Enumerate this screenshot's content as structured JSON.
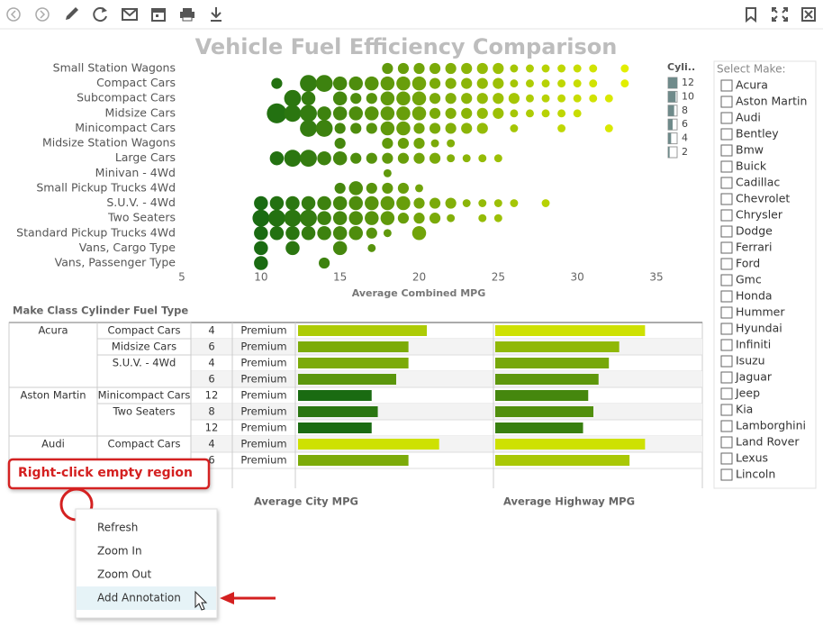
{
  "chart_data": {
    "type": "bubble",
    "title": "Vehicle Fuel Efficiency Comparison",
    "categories": [
      "Small Station Wagons",
      "Compact Cars",
      "Subcompact Cars",
      "Midsize Cars",
      "Minicompact Cars",
      "Midsize Station Wagons",
      "Large Cars",
      "Minivan - 4Wd",
      "Small Pickup Trucks 4Wd",
      "S.U.V. - 4Wd",
      "Two Seaters",
      "Standard Pickup Trucks 4Wd",
      "Vans, Cargo Type",
      "Vans, Passenger Type"
    ],
    "rows": [
      {
        "x": [
          18,
          19,
          20,
          21,
          22,
          23,
          24,
          25,
          26,
          27,
          28,
          29,
          30,
          31,
          33
        ],
        "size": [
          2,
          2,
          2,
          2,
          2,
          2,
          2,
          2,
          1,
          1,
          1,
          1,
          1,
          1,
          1
        ]
      },
      {
        "x": [
          11,
          13,
          14,
          15,
          16,
          17,
          18,
          19,
          20,
          21,
          22,
          23,
          24,
          25,
          26,
          27,
          28,
          29,
          30,
          31,
          33
        ],
        "size": [
          2,
          4,
          4,
          3,
          3,
          3,
          3,
          3,
          3,
          2,
          2,
          2,
          2,
          2,
          1,
          1,
          1,
          1,
          1,
          1,
          1
        ]
      },
      {
        "x": [
          12,
          13,
          15,
          16,
          17,
          18,
          19,
          20,
          21,
          22,
          23,
          24,
          25,
          26,
          27,
          28,
          29,
          30,
          31,
          32
        ],
        "size": [
          4,
          3,
          3,
          2,
          2,
          3,
          3,
          3,
          2,
          2,
          2,
          2,
          2,
          2,
          1,
          1,
          1,
          1,
          1,
          1
        ]
      },
      {
        "x": [
          11,
          12,
          13,
          14,
          15,
          16,
          17,
          18,
          19,
          20,
          21,
          22,
          23,
          24,
          25,
          26,
          27,
          28,
          29,
          30
        ],
        "size": [
          5,
          4,
          4,
          3,
          3,
          3,
          3,
          3,
          3,
          3,
          2,
          2,
          2,
          2,
          2,
          1,
          1,
          1,
          1,
          1
        ]
      },
      {
        "x": [
          13,
          14,
          15,
          16,
          17,
          18,
          19,
          20,
          21,
          22,
          23,
          24,
          26,
          29,
          32
        ],
        "size": [
          4,
          4,
          2,
          2,
          2,
          3,
          3,
          2,
          2,
          2,
          2,
          2,
          1,
          1,
          1
        ]
      },
      {
        "x": [
          15,
          18,
          19,
          20,
          21,
          22
        ],
        "size": [
          2,
          2,
          2,
          2,
          1,
          1
        ]
      },
      {
        "x": [
          11,
          12,
          13,
          14,
          15,
          16,
          17,
          18,
          19,
          20,
          21,
          22,
          23,
          24,
          25
        ],
        "size": [
          3,
          4,
          4,
          3,
          3,
          2,
          2,
          2,
          2,
          2,
          2,
          1,
          1,
          1,
          1
        ]
      },
      {
        "x": [
          18
        ],
        "size": [
          1
        ]
      },
      {
        "x": [
          15,
          16,
          17,
          18,
          19,
          20
        ],
        "size": [
          2,
          3,
          2,
          2,
          2,
          1
        ]
      },
      {
        "x": [
          10,
          11,
          12,
          13,
          14,
          15,
          16,
          17,
          18,
          19,
          20,
          21,
          22,
          23,
          24,
          25,
          26,
          28
        ],
        "size": [
          3,
          3,
          3,
          3,
          3,
          3,
          3,
          3,
          3,
          3,
          2,
          2,
          2,
          1,
          1,
          1,
          1,
          1
        ]
      },
      {
        "x": [
          10,
          11,
          12,
          13,
          14,
          15,
          16,
          17,
          18,
          19,
          20,
          21,
          22,
          24,
          25
        ],
        "size": [
          4,
          4,
          4,
          4,
          3,
          3,
          3,
          3,
          3,
          2,
          2,
          2,
          1,
          1,
          1
        ]
      },
      {
        "x": [
          10,
          11,
          12,
          13,
          14,
          15,
          16,
          17,
          18,
          20
        ],
        "size": [
          3,
          3,
          3,
          3,
          3,
          3,
          3,
          2,
          1,
          3
        ]
      },
      {
        "x": [
          10,
          12,
          15,
          17
        ],
        "size": [
          3,
          3,
          3,
          1
        ]
      },
      {
        "x": [
          10,
          14
        ],
        "size": [
          3,
          2
        ]
      }
    ],
    "xlim": [
      5,
      35
    ],
    "xticks": [
      5,
      10,
      15,
      20,
      25,
      30,
      35
    ],
    "xlabel": "Average Combined MPG",
    "color_scale": [
      "#1a6b12",
      "#e2ee00"
    ],
    "legend": {
      "title": "Cyli..",
      "labels": [
        12,
        10,
        8,
        6,
        4,
        2
      ]
    }
  },
  "table": {
    "title": "Make Class Cylinder Fuel Type",
    "city_label": "Average City MPG",
    "highway_label": "Average Highway MPG",
    "city_xlim": [
      0,
      32
    ],
    "highway_xlim": [
      0,
      38
    ],
    "rows": [
      {
        "make": "Acura",
        "class": "Compact Cars",
        "cylinders": 4,
        "fuel": "Premium",
        "city": 21,
        "highway": 29
      },
      {
        "make": null,
        "class": "Midsize Cars",
        "cylinders": 6,
        "fuel": "Premium",
        "city": 18,
        "highway": 24
      },
      {
        "make": null,
        "class": "S.U.V. - 4Wd",
        "cylinders": 4,
        "fuel": "Premium",
        "city": 18,
        "highway": 22
      },
      {
        "make": null,
        "class": null,
        "cylinders": 6,
        "fuel": "Premium",
        "city": 16,
        "highway": 20
      },
      {
        "make": "Aston Martin",
        "class": "Minicompact Cars",
        "cylinders": 12,
        "fuel": "Premium",
        "city": 12,
        "highway": 18
      },
      {
        "make": null,
        "class": "Two Seaters",
        "cylinders": 8,
        "fuel": "Premium",
        "city": 13,
        "highway": 19
      },
      {
        "make": null,
        "class": null,
        "cylinders": 12,
        "fuel": "Premium",
        "city": 12,
        "highway": 17
      },
      {
        "make": "Audi",
        "class": "Compact Cars",
        "cylinders": 4,
        "fuel": "Premium",
        "city": 23,
        "highway": 29
      },
      {
        "make": null,
        "class": null,
        "cylinders": 6,
        "fuel": "Premium",
        "city": 18,
        "highway": 26
      }
    ]
  },
  "make_filter": {
    "label": "Select Make:",
    "makes": [
      "Acura",
      "Aston Martin",
      "Audi",
      "Bentley",
      "Bmw",
      "Buick",
      "Cadillac",
      "Chevrolet",
      "Chrysler",
      "Dodge",
      "Ferrari",
      "Ford",
      "Gmc",
      "Honda",
      "Hummer",
      "Hyundai",
      "Infiniti",
      "Isuzu",
      "Jaguar",
      "Jeep",
      "Kia",
      "Lamborghini",
      "Land Rover",
      "Lexus",
      "Lincoln"
    ]
  },
  "callout": "Right-click empty region",
  "context_menu": [
    "Refresh",
    "Zoom In",
    "Zoom Out",
    "Add Annotation"
  ]
}
